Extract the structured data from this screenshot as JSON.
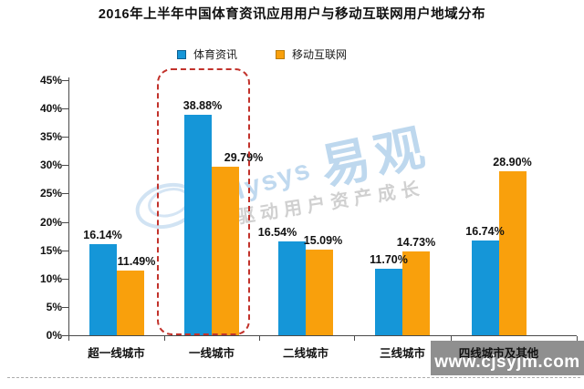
{
  "title": "2016年上半年中国体育资讯应用用户与移动互联网用户地域分布",
  "legend": [
    {
      "label": "体育资讯",
      "color": "#1596D8"
    },
    {
      "label": "移动互联网",
      "color": "#F9A00C"
    }
  ],
  "chart_data": {
    "type": "bar",
    "title": "2016年上半年中国体育资讯应用用户与移动互联网用户地域分布",
    "categories": [
      "超一线城市",
      "一线城市",
      "二线城市",
      "三线城市",
      "四线城市及其他"
    ],
    "series": [
      {
        "name": "体育资讯",
        "color": "#1596D8",
        "values": [
          16.14,
          38.88,
          16.54,
          11.7,
          16.74
        ]
      },
      {
        "name": "移动互联网",
        "color": "#F9A00C",
        "values": [
          11.49,
          29.79,
          15.09,
          14.73,
          28.9
        ]
      }
    ],
    "value_labels": [
      [
        "16.14%",
        "38.88%",
        "16.54%",
        "11.70%",
        "16.74%"
      ],
      [
        "11.49%",
        "29.79%",
        "15.09%",
        "14.73%",
        "28.90%"
      ]
    ],
    "xlabel": "",
    "ylabel": "",
    "ylim": [
      0,
      45
    ],
    "yticks": [
      "0%",
      "5%",
      "10%",
      "15%",
      "20%",
      "25%",
      "30%",
      "35%",
      "40%",
      "45%"
    ],
    "grid": false,
    "legend_position": "top",
    "highlight": {
      "category": "一线城市",
      "style": "red-dashed-rounded-box",
      "color": "#C2322B"
    }
  },
  "watermark": {
    "latin": "Analysys",
    "logo_text": "易观",
    "slogan": "驱动用户资产成长"
  },
  "footer": {
    "site": "www.cjsyjm.com"
  }
}
